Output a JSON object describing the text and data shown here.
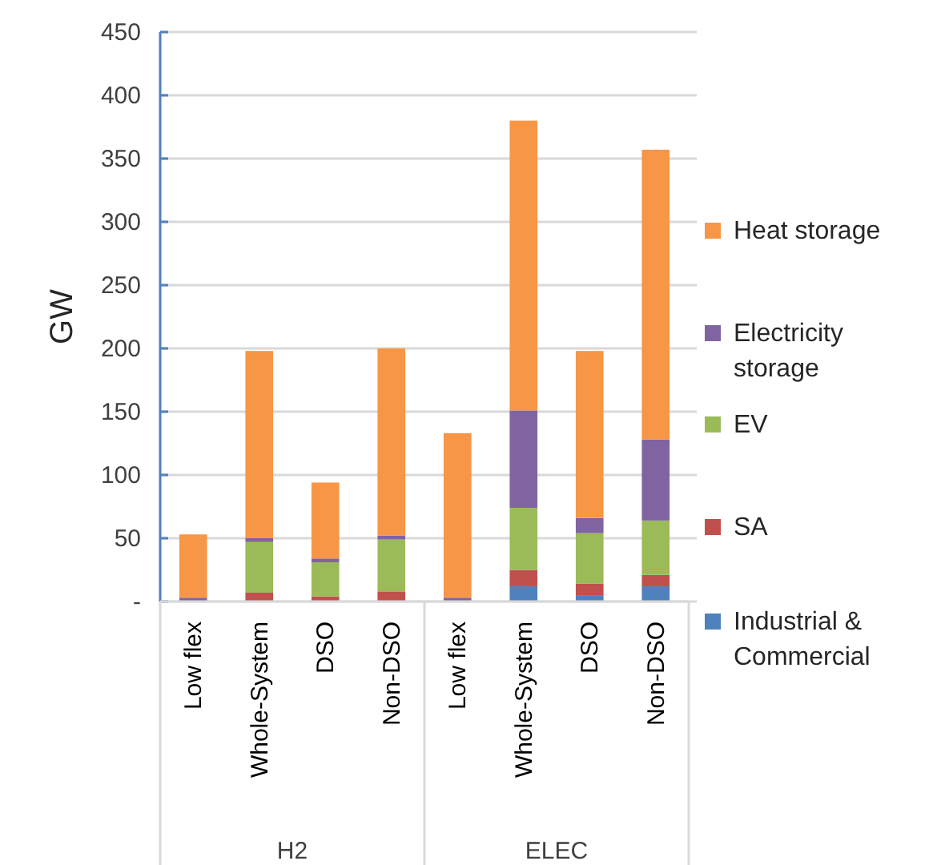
{
  "chart_data": {
    "type": "bar",
    "stacked": true,
    "ylabel": "GW",
    "categories": [
      "Low flex",
      "Whole-System",
      "DSO",
      "Non-DSO",
      "Low flex",
      "Whole-System",
      "DSO",
      "Non-DSO"
    ],
    "series": [
      {
        "name": "Industrial & Commercial",
        "color": "#4f81bd",
        "values": [
          0,
          0,
          0,
          0,
          0,
          12,
          5,
          12
        ]
      },
      {
        "name": "SA",
        "color": "#c0504d",
        "values": [
          0,
          7,
          4,
          8,
          0,
          13,
          9,
          9
        ]
      },
      {
        "name": "EV",
        "color": "#9bbb59",
        "values": [
          0,
          40,
          27,
          41,
          0,
          49,
          40,
          43
        ]
      },
      {
        "name": "Electricity storage",
        "color": "#8064a2",
        "values": [
          3,
          3,
          3,
          3,
          3,
          77,
          12,
          64
        ]
      },
      {
        "name": "Heat storage",
        "color": "#f79646",
        "values": [
          50,
          148,
          60,
          148,
          130,
          229,
          132,
          229
        ]
      }
    ],
    "ylim": [
      0,
      450
    ],
    "yticks": [
      {
        "value": 0,
        "label": "-"
      },
      50,
      100,
      150,
      200,
      250,
      300,
      350,
      400,
      450
    ],
    "grid": "y",
    "legend": "right",
    "annotations": [
      "H2",
      "ELEC"
    ]
  }
}
